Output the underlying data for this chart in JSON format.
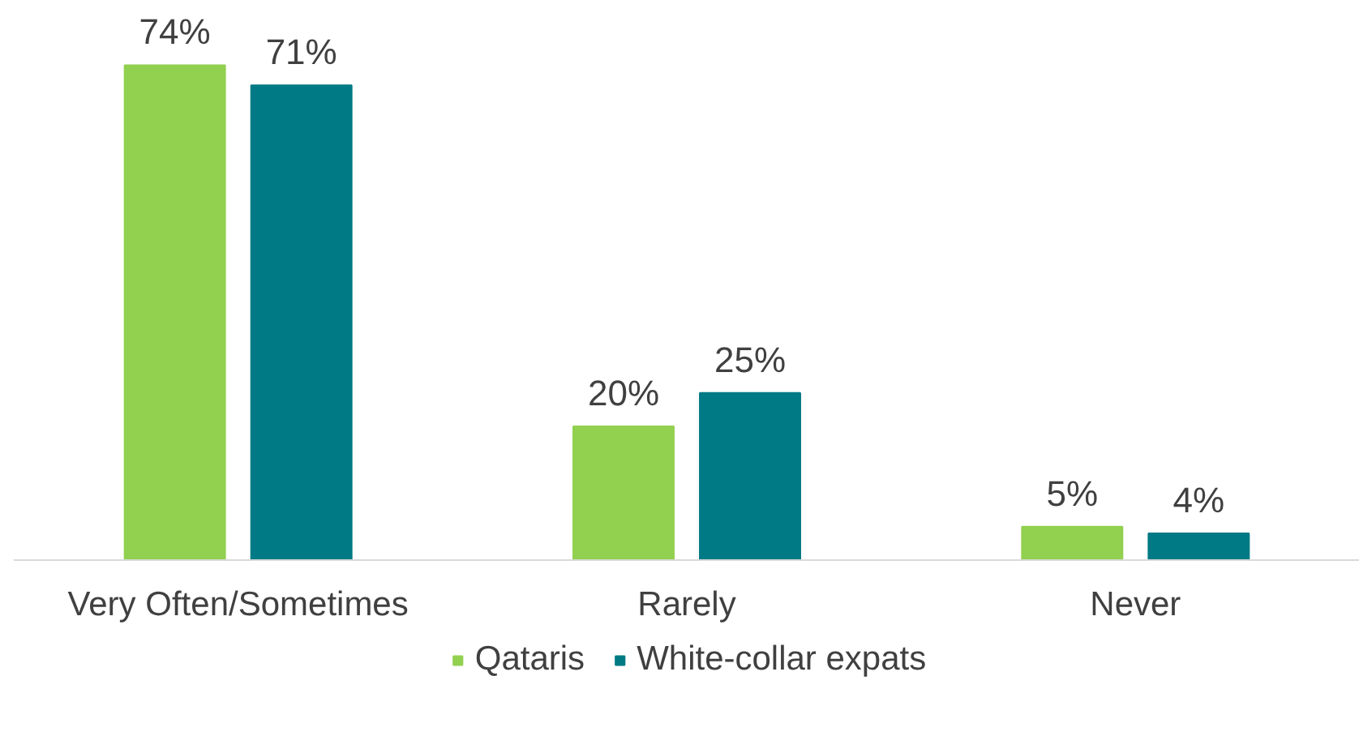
{
  "chart_data": {
    "type": "bar",
    "categories": [
      "Very Often/Sometimes",
      "Rarely",
      "Never"
    ],
    "series": [
      {
        "name": "Qataris",
        "color": "#92d050",
        "values": [
          74,
          20,
          5
        ],
        "value_labels": [
          "74%",
          "20%",
          "5%"
        ]
      },
      {
        "name": "White-collar expats",
        "color": "#007a84",
        "values": [
          71,
          25,
          4
        ],
        "value_labels": [
          "71%",
          "25%",
          "4%"
        ]
      }
    ],
    "tick_labels": "x",
    "legend": "bottom"
  }
}
